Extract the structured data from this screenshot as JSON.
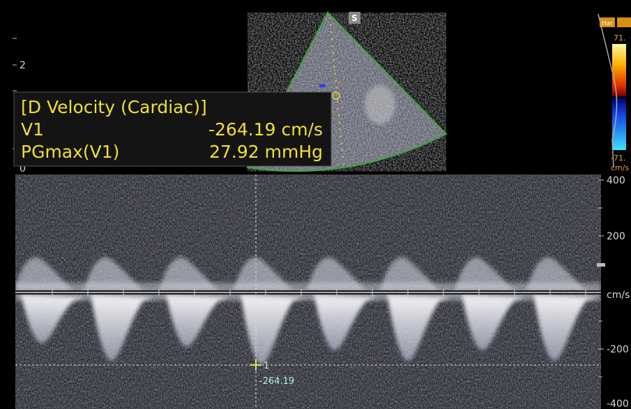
{
  "sector": {
    "marker": "S",
    "depth_label": "2",
    "zero_label": "0"
  },
  "measurement": {
    "title": "[D Velocity (Cardiac)]",
    "rows": [
      [
        "V1",
        "-264.19 cm/s"
      ],
      [
        "PGmax(V1)",
        "27.92 mmHg"
      ]
    ]
  },
  "velocity_scale": {
    "labels": [
      "400",
      "200",
      "cm/s",
      "-200",
      "-400"
    ]
  },
  "cursor": {
    "index": "1",
    "value": "-264.19"
  },
  "color_map": {
    "mode": "Har",
    "max": "71.",
    "min": "-71.",
    "unit": "cm/s"
  }
}
